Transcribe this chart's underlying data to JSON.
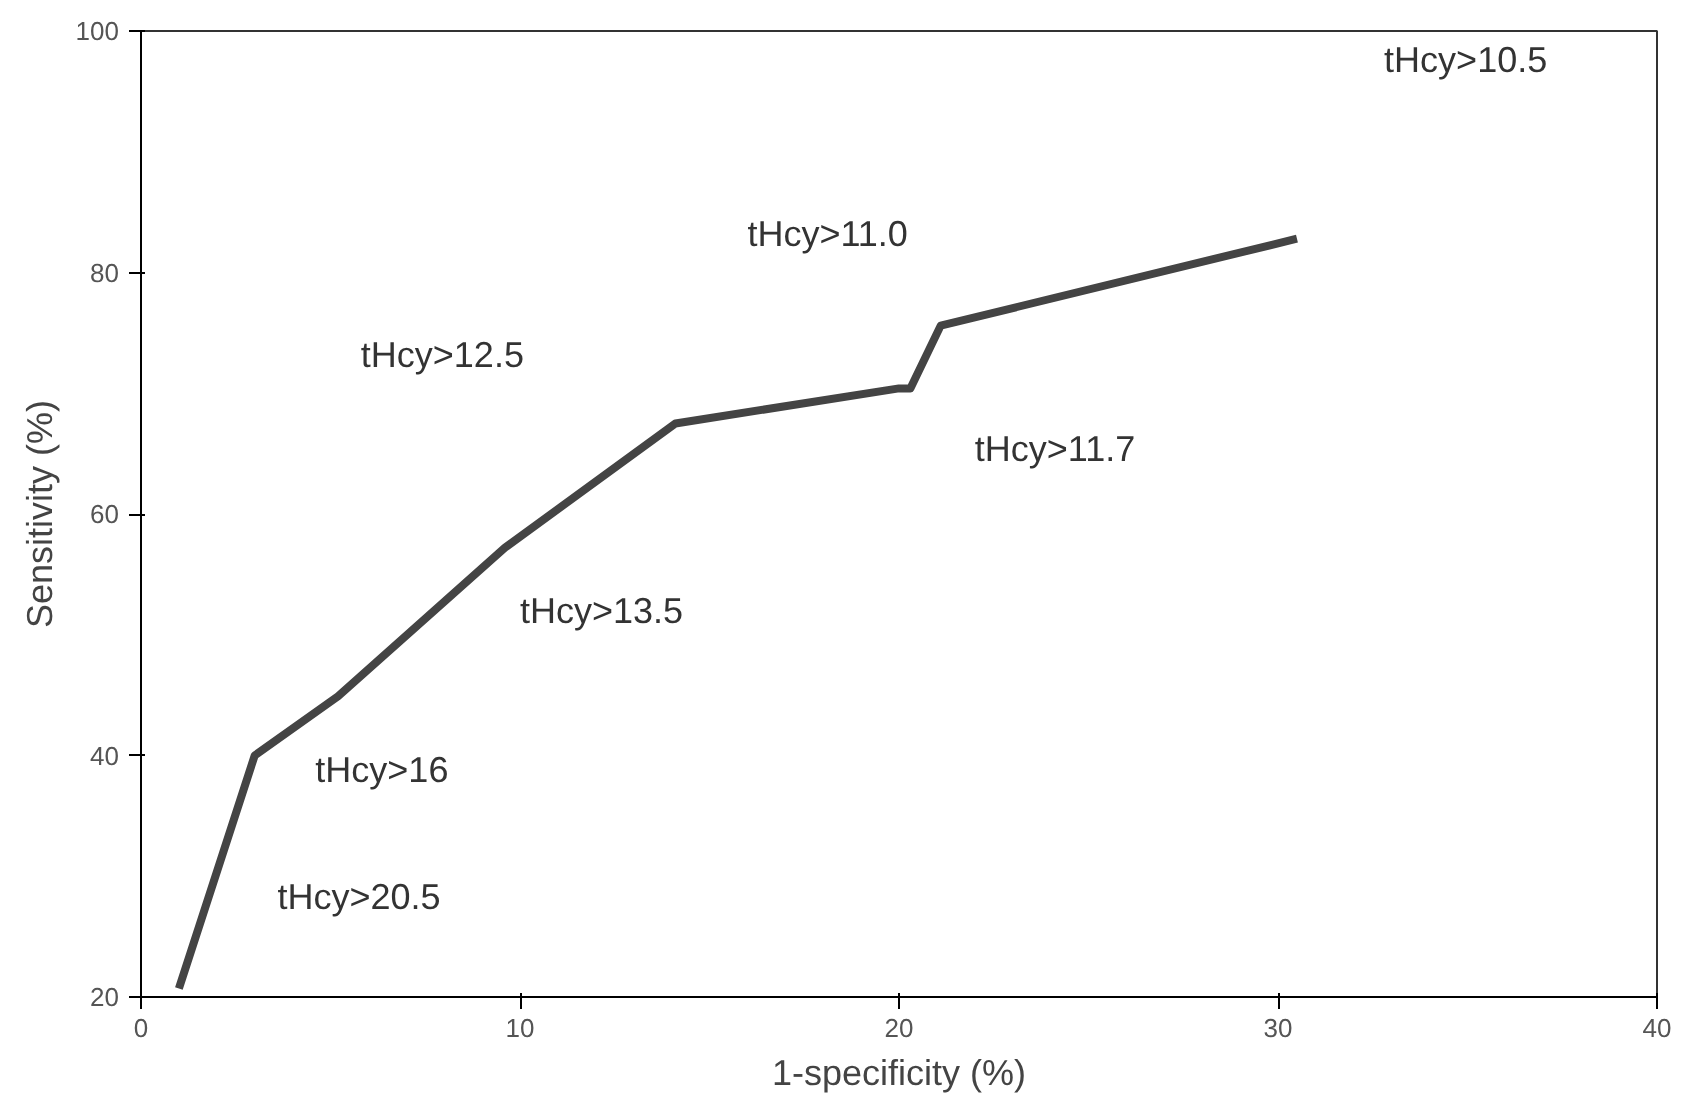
{
  "chart_data": {
    "type": "line",
    "xlabel": "1-specificity (%)",
    "ylabel": "Sensitivity (%)",
    "x": [
      1.0,
      3.0,
      5.2,
      9.6,
      14.1,
      20.0,
      20.3,
      21.1,
      30.5
    ],
    "series": [
      {
        "color": "#444444",
        "values": [
          20.7,
          40.0,
          44.9,
          57.2,
          67.5,
          70.4,
          70.4,
          75.6,
          82.8
        ]
      }
    ],
    "xlim": [
      0,
      40
    ],
    "ylim": [
      20,
      100
    ],
    "xticks": [
      0,
      10,
      20,
      30,
      40
    ],
    "yticks": [
      20,
      40,
      60,
      80,
      100
    ],
    "grid": false,
    "marker": "none",
    "line_style": "solid",
    "annotations": [
      "tHcy>10.5",
      "tHcy>11.0",
      "tHcy>12.5",
      "tHcy>11.7",
      "tHcy>13.5",
      "tHcy>16",
      "tHcy>20.5"
    ]
  }
}
